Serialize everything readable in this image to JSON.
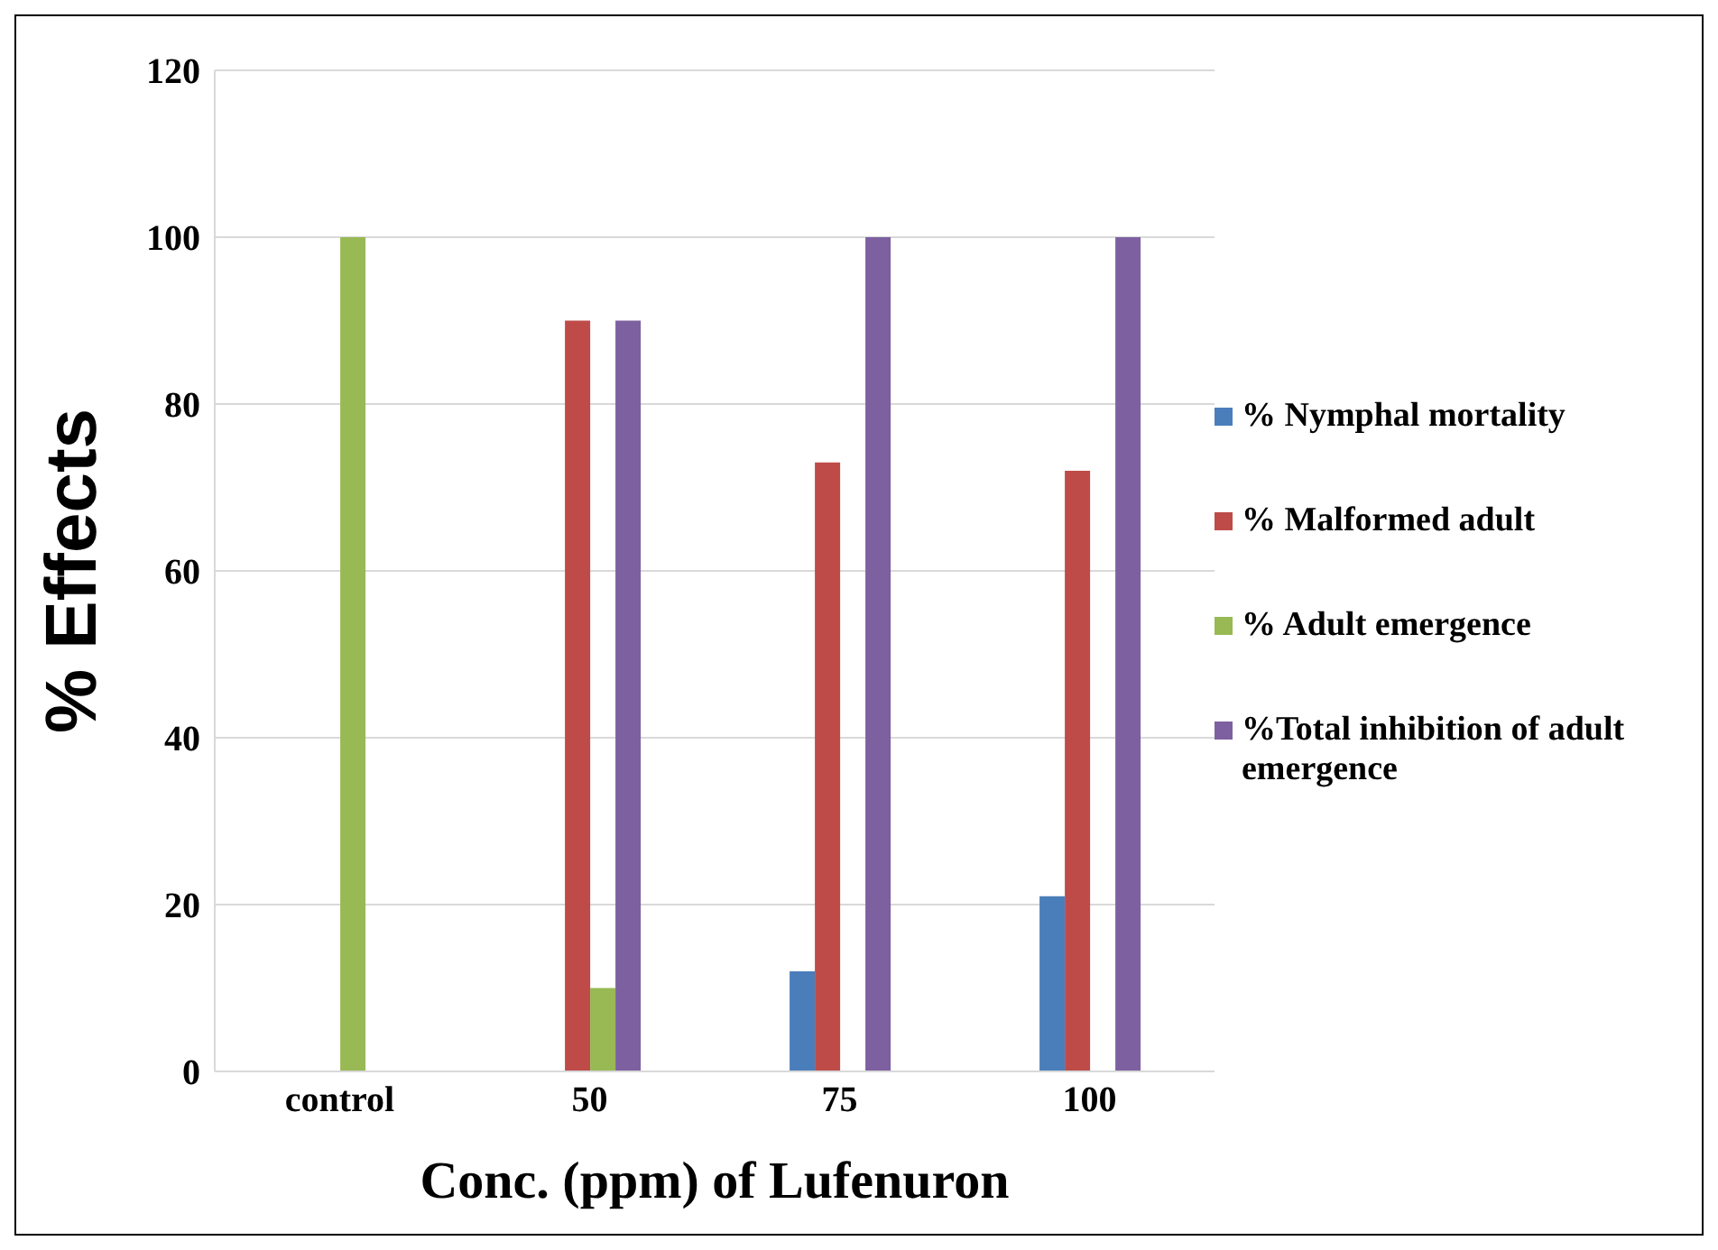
{
  "chart_data": {
    "type": "bar",
    "xlabel": "Conc. (ppm) of Lufenuron",
    "ylabel": "% Effects",
    "categories": [
      "control",
      "50",
      "75",
      "100"
    ],
    "series": [
      {
        "name": "% Nymphal mortality",
        "color": "#4a7ebb",
        "values": [
          0,
          0,
          12,
          21
        ]
      },
      {
        "name": "% Malformed adult",
        "color": "#be4b48",
        "values": [
          0,
          90,
          73,
          72
        ]
      },
      {
        "name": "% Adult emergence",
        "color": "#98b954",
        "values": [
          100,
          10,
          0,
          0
        ]
      },
      {
        "name": "%Total inhibition of adult emergence",
        "color": "#7d60a0",
        "values": [
          0,
          90,
          100,
          100
        ]
      }
    ],
    "ylim": [
      0,
      120
    ],
    "yticks": [
      0,
      20,
      40,
      60,
      80,
      100,
      120
    ],
    "grid": "y",
    "legend": "right"
  }
}
